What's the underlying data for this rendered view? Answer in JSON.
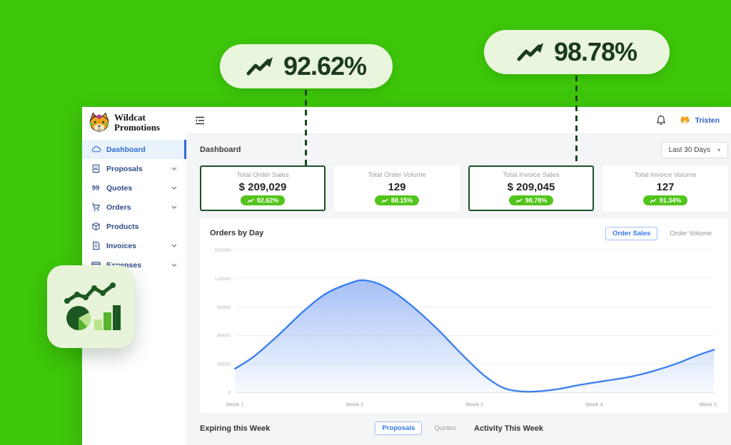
{
  "callouts": [
    {
      "value": "92.62%"
    },
    {
      "value": "98.78%"
    }
  ],
  "brand": {
    "line1": "Wildcat",
    "line2": "Promotions"
  },
  "topbar": {
    "user": "Tristen"
  },
  "sidebar": {
    "items": [
      {
        "label": "Dashboard",
        "active": true
      },
      {
        "label": "Proposals",
        "active": false
      },
      {
        "label": "Quotes",
        "active": false
      },
      {
        "label": "Orders",
        "active": false
      },
      {
        "label": "Products",
        "active": false
      },
      {
        "label": "Invoices",
        "active": false
      },
      {
        "label": "Expenses",
        "active": false
      }
    ]
  },
  "page": {
    "title": "Dashboard",
    "range_label": "Last 30 Days"
  },
  "stats": [
    {
      "label": "Total Order Sales",
      "value": "$ 209,029",
      "badge": "92.62%"
    },
    {
      "label": "Total Order Volume",
      "value": "129",
      "badge": "88.15%"
    },
    {
      "label": "Total Invoice Sales",
      "value": "$ 209,045",
      "badge": "98.78%"
    },
    {
      "label": "Total Invoice Volume",
      "value": "127",
      "badge": "91.34%"
    }
  ],
  "chart": {
    "title": "Orders by Day",
    "toggles": [
      {
        "label": "Order Sales",
        "active": true
      },
      {
        "label": "Order Volume",
        "active": false
      }
    ]
  },
  "chart_data": {
    "type": "area",
    "title": "Orders by Day",
    "series_name": "Order Sales",
    "x_labels": [
      "Week 1",
      "Week 2",
      "Week 3",
      "Week 4",
      "Week 5"
    ],
    "y_ticks": [
      0,
      30000,
      60000,
      90000,
      120000,
      150000
    ],
    "ylim": [
      0,
      150000
    ],
    "grid": true,
    "line_color": "#3b7df0",
    "fill_top": "rgba(91,141,239,0.55)",
    "fill_bottom": "rgba(91,141,239,0.04)",
    "points": [
      [
        0.0,
        25000
      ],
      [
        0.04,
        38000
      ],
      [
        0.09,
        60000
      ],
      [
        0.14,
        84000
      ],
      [
        0.19,
        104000
      ],
      [
        0.24,
        115000
      ],
      [
        0.27,
        118000
      ],
      [
        0.31,
        112000
      ],
      [
        0.36,
        95000
      ],
      [
        0.42,
        68000
      ],
      [
        0.47,
        42000
      ],
      [
        0.52,
        18000
      ],
      [
        0.56,
        5000
      ],
      [
        0.6,
        1000
      ],
      [
        0.64,
        1500
      ],
      [
        0.68,
        4000
      ],
      [
        0.72,
        8000
      ],
      [
        0.77,
        12000
      ],
      [
        0.82,
        16000
      ],
      [
        0.87,
        22000
      ],
      [
        0.92,
        30000
      ],
      [
        0.96,
        38000
      ],
      [
        1.0,
        45000
      ]
    ]
  },
  "footer": {
    "expiring_label": "Expiring this Week",
    "tabs": [
      {
        "label": "Proposals",
        "active": true
      },
      {
        "label": "Quotes",
        "active": false
      }
    ],
    "activity_label": "Activity This Week"
  },
  "colors": {
    "background_green": "#3ec70a",
    "pill_background": "#e9f6dd",
    "dark_green": "#1b3a20",
    "badge_green": "#52c41a",
    "highlight_border": "#1d5128",
    "active_blue": "#2e6bd3",
    "chart_line": "#3b7df0"
  }
}
